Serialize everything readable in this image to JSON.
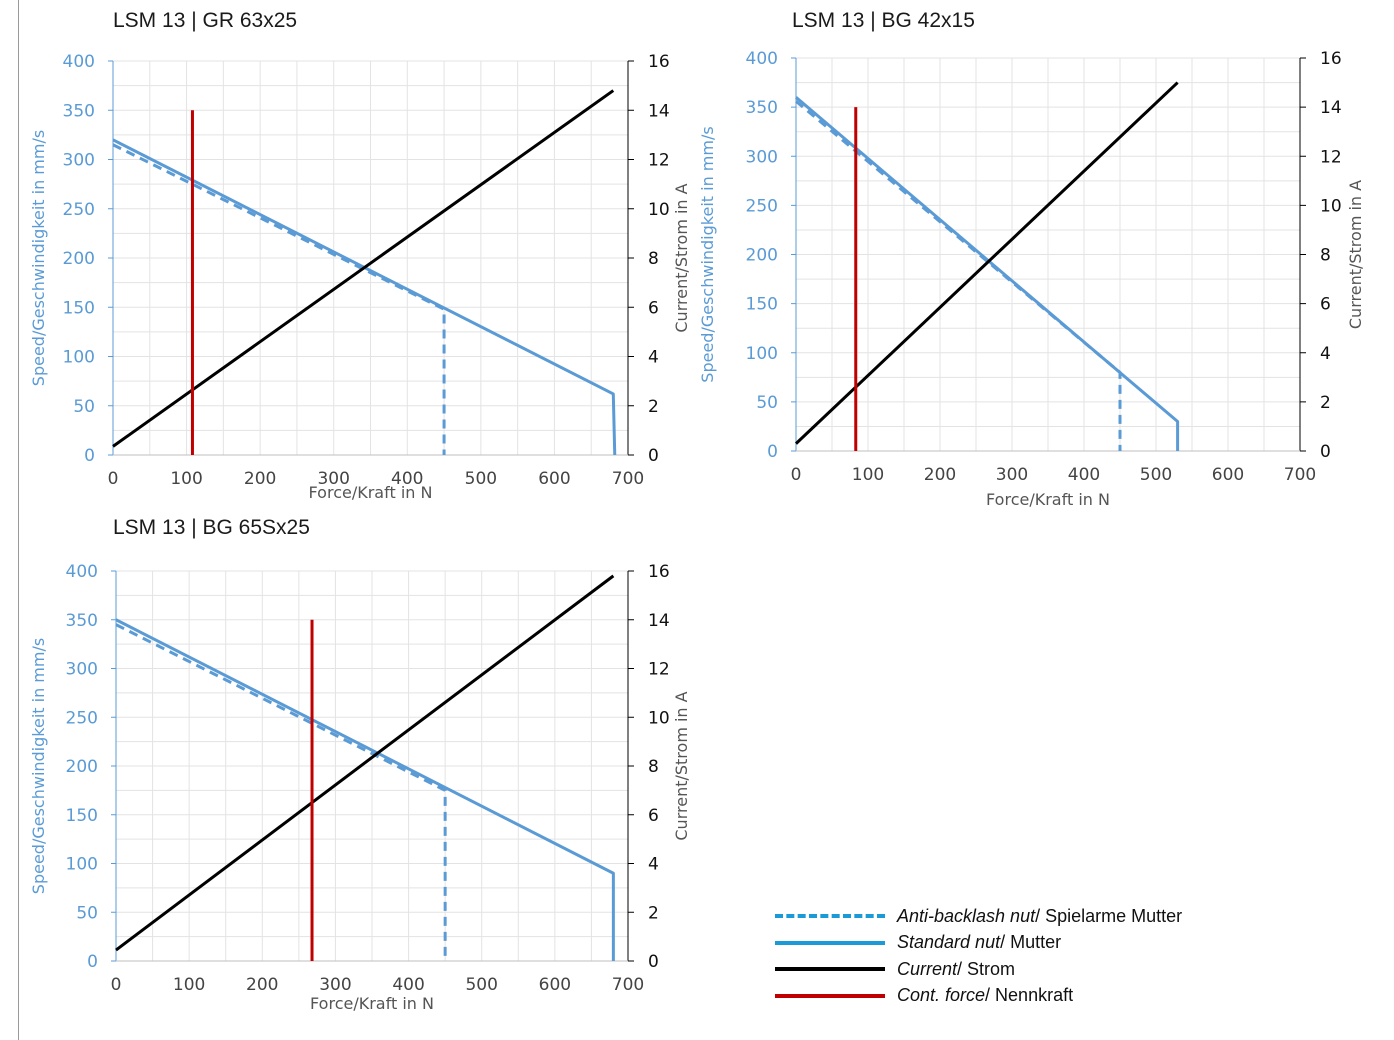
{
  "colors": {
    "speed_axis": "#5b9bd5",
    "speed_line": "#5b9bd5",
    "current_line": "#000000",
    "cont_force": "#c00000",
    "grid": "#e3e3e3",
    "legend_blue": "#1a9ad6"
  },
  "chart_data": [
    {
      "type": "line",
      "title": "LSM 13 | GR 63x25",
      "xlabel": "Force/Kraft in N",
      "ylabel": "Speed/Geschwindigkeit in mm/s",
      "y2label": "Current/Strom in A",
      "xlim": [
        0,
        700
      ],
      "ylim": [
        0,
        400
      ],
      "y2lim": [
        0,
        16
      ],
      "xticks": [
        0,
        100,
        200,
        300,
        400,
        500,
        600,
        700
      ],
      "yticks": [
        0,
        50,
        100,
        150,
        200,
        250,
        300,
        350,
        400
      ],
      "y2ticks": [
        0,
        2,
        4,
        6,
        8,
        10,
        12,
        14,
        16
      ],
      "grid": true,
      "series": [
        {
          "role": "standard",
          "axis": "y",
          "style": "solid",
          "x": [
            0,
            680,
            682
          ],
          "y": [
            320,
            62,
            0
          ]
        },
        {
          "role": "anti-backlash",
          "axis": "y",
          "style": "dashed",
          "x": [
            0,
            450,
            450
          ],
          "y": [
            315,
            148,
            0
          ]
        },
        {
          "role": "current",
          "axis": "y2",
          "style": "solid",
          "x": [
            0,
            680
          ],
          "y": [
            0.35,
            14.8
          ]
        },
        {
          "role": "cont-force",
          "axis": "y",
          "style": "solid",
          "x": [
            108,
            108
          ],
          "y": [
            0,
            350
          ]
        }
      ]
    },
    {
      "type": "line",
      "title": "LSM 13 | BG 42x15",
      "xlabel": "Force/Kraft in N",
      "ylabel": "Speed/Geschwindigkeit in mm/s",
      "y2label": "Current/Strom in A",
      "xlim": [
        0,
        700
      ],
      "ylim": [
        0,
        400
      ],
      "y2lim": [
        0,
        16
      ],
      "xticks": [
        0,
        100,
        200,
        300,
        400,
        500,
        600,
        700
      ],
      "yticks": [
        0,
        50,
        100,
        150,
        200,
        250,
        300,
        350,
        400
      ],
      "y2ticks": [
        0,
        2,
        4,
        6,
        8,
        10,
        12,
        14,
        16
      ],
      "grid": true,
      "series": [
        {
          "role": "standard",
          "axis": "y",
          "style": "solid",
          "x": [
            0,
            530,
            530
          ],
          "y": [
            360,
            30,
            0
          ]
        },
        {
          "role": "anti-backlash",
          "axis": "y",
          "style": "dashed",
          "x": [
            0,
            450,
            450
          ],
          "y": [
            356,
            80,
            0
          ]
        },
        {
          "role": "current",
          "axis": "y2",
          "style": "solid",
          "x": [
            0,
            530
          ],
          "y": [
            0.3,
            15
          ]
        },
        {
          "role": "cont-force",
          "axis": "y",
          "style": "solid",
          "x": [
            83,
            83
          ],
          "y": [
            0,
            350
          ]
        }
      ]
    },
    {
      "type": "line",
      "title": "LSM 13 | BG 65Sx25",
      "xlabel": "Force/Kraft in N",
      "ylabel": "Speed/Geschwindigkeit in mm/s",
      "y2label": "Current/Strom in A",
      "xlim": [
        0,
        700
      ],
      "ylim": [
        0,
        400
      ],
      "y2lim": [
        0,
        16
      ],
      "xticks": [
        0,
        100,
        200,
        300,
        400,
        500,
        600,
        700
      ],
      "yticks": [
        0,
        50,
        100,
        150,
        200,
        250,
        300,
        350,
        400
      ],
      "y2ticks": [
        0,
        2,
        4,
        6,
        8,
        10,
        12,
        14,
        16
      ],
      "grid": true,
      "series": [
        {
          "role": "standard",
          "axis": "y",
          "style": "solid",
          "x": [
            0,
            680,
            680
          ],
          "y": [
            350,
            90,
            0
          ]
        },
        {
          "role": "anti-backlash",
          "axis": "y",
          "style": "dashed",
          "x": [
            0,
            450,
            450
          ],
          "y": [
            345,
            175,
            0
          ]
        },
        {
          "role": "current",
          "axis": "y2",
          "style": "solid",
          "x": [
            0,
            680
          ],
          "y": [
            0.45,
            15.8
          ]
        },
        {
          "role": "cont-force",
          "axis": "y",
          "style": "solid",
          "x": [
            268,
            268
          ],
          "y": [
            0,
            350
          ]
        }
      ]
    }
  ],
  "legend": [
    {
      "style": "dashed",
      "color_key": "legend_blue",
      "italic": "Anti-backlash nut",
      "rest": "/ Spielarme Mutter"
    },
    {
      "style": "solid",
      "color_key": "legend_blue",
      "italic": "Standard nut",
      "rest": "/ Mutter"
    },
    {
      "style": "solid",
      "color_key": "current_line",
      "italic": "Current",
      "rest": "/ Strom"
    },
    {
      "style": "solid",
      "color_key": "cont_force",
      "italic": "Cont. force",
      "rest": "/ Nennkraft"
    }
  ]
}
